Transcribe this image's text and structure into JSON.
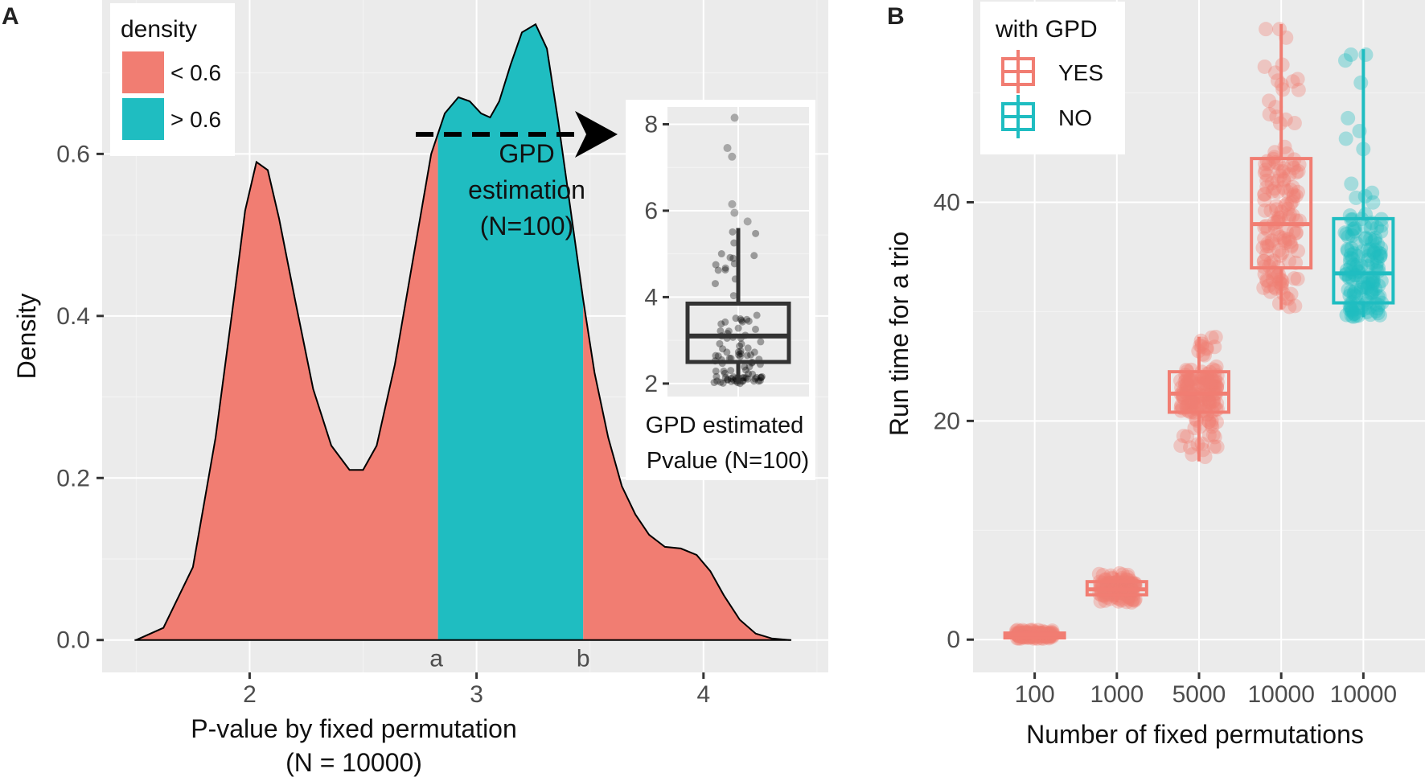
{
  "chart_data": [
    {
      "panel": "A",
      "type": "area",
      "title": "",
      "xlabel_line1": "P-value by fixed permutation",
      "xlabel_line2": "(N = 10000)",
      "ylabel": "Density",
      "x_ticks": [
        "2",
        "3",
        "4"
      ],
      "x_tick_values": [
        2,
        3,
        4
      ],
      "y_ticks": [
        "0.0",
        "0.2",
        "0.4",
        "0.6"
      ],
      "y_tick_values": [
        0.0,
        0.2,
        0.4,
        0.6
      ],
      "xlim": [
        1.35,
        4.55
      ],
      "ylim": [
        -0.04,
        0.79
      ],
      "legend": {
        "title": "density",
        "entries": [
          {
            "label": "< 0.6",
            "color": "#F17D72"
          },
          {
            "label": "> 0.6",
            "color": "#1FBDC1"
          }
        ]
      },
      "region_bounds": {
        "a": 2.83,
        "b": 3.47
      },
      "region_labels": [
        "a",
        "b"
      ],
      "curve": {
        "x": [
          1.5,
          1.62,
          1.75,
          1.85,
          1.93,
          1.98,
          2.03,
          2.08,
          2.13,
          2.2,
          2.28,
          2.36,
          2.44,
          2.5,
          2.56,
          2.64,
          2.72,
          2.8,
          2.86,
          2.92,
          2.97,
          3.02,
          3.06,
          3.1,
          3.15,
          3.2,
          3.26,
          3.31,
          3.36,
          3.42,
          3.47,
          3.52,
          3.58,
          3.64,
          3.7,
          3.76,
          3.83,
          3.9,
          3.97,
          4.03,
          4.09,
          4.16,
          4.23,
          4.3,
          4.38
        ],
        "y": [
          0.0,
          0.015,
          0.09,
          0.25,
          0.42,
          0.53,
          0.59,
          0.58,
          0.52,
          0.42,
          0.31,
          0.24,
          0.21,
          0.21,
          0.24,
          0.34,
          0.47,
          0.6,
          0.65,
          0.67,
          0.665,
          0.65,
          0.645,
          0.665,
          0.71,
          0.75,
          0.76,
          0.73,
          0.64,
          0.52,
          0.42,
          0.33,
          0.25,
          0.19,
          0.155,
          0.13,
          0.115,
          0.113,
          0.105,
          0.085,
          0.055,
          0.025,
          0.008,
          0.002,
          0.0
        ]
      },
      "annotation": {
        "line1": "GPD",
        "line2": "estimation",
        "line3": "(N=100)"
      },
      "inset": {
        "type": "box",
        "xlabel_line1": "GPD estimated",
        "xlabel_line2": "Pvalue (N=100)",
        "y_ticks": [
          "2",
          "4",
          "6",
          "8"
        ],
        "y_tick_values": [
          2,
          4,
          6,
          8
        ],
        "ylim": [
          1.7,
          8.4
        ],
        "box": {
          "q1": 2.5,
          "median": 3.1,
          "q3": 3.85,
          "lower_whisker": 2.0,
          "upper_whisker": 5.6
        },
        "outliers": [
          5.75,
          5.95,
          6.15,
          7.25,
          7.45,
          8.15
        ]
      }
    },
    {
      "panel": "B",
      "type": "box",
      "xlabel": "Number of fixed permutations",
      "ylabel": "Run time for a trio",
      "categories": [
        "100",
        "1000",
        "5000",
        "10000",
        "10000"
      ],
      "y_ticks": [
        "0",
        "20",
        "40"
      ],
      "y_tick_values": [
        0,
        20,
        40
      ],
      "ylim": [
        -3,
        58.5
      ],
      "legend": {
        "title": "with GPD",
        "entries": [
          {
            "label": "YES",
            "color": "#F17D72"
          },
          {
            "label": "NO",
            "color": "#1FBDC1"
          }
        ]
      },
      "series": [
        {
          "category": "100",
          "group": "YES",
          "q1": 0.3,
          "median": 0.45,
          "q3": 0.6,
          "min": 0.1,
          "max": 0.9
        },
        {
          "category": "1000",
          "group": "YES",
          "q1": 4.1,
          "median": 4.6,
          "q3": 5.3,
          "min": 3.4,
          "max": 6.1
        },
        {
          "category": "5000",
          "group": "YES",
          "q1": 20.8,
          "median": 22.5,
          "q3": 24.5,
          "min": 16.3,
          "max": 27.7
        },
        {
          "category": "10000",
          "group": "YES",
          "q1": 34.0,
          "median": 38.0,
          "q3": 44.0,
          "min": 30.2,
          "max": 56.3
        },
        {
          "category": "10000",
          "group": "NO",
          "q1": 30.8,
          "median": 33.5,
          "q3": 38.5,
          "min": 29.5,
          "max": 54.0
        }
      ]
    }
  ]
}
